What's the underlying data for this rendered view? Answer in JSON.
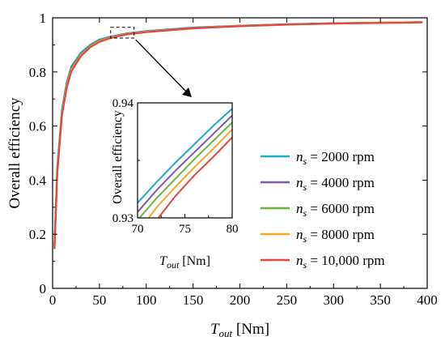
{
  "chart_data": [
    {
      "type": "line",
      "xlabel": {
        "main": "T",
        "sub": "out",
        "unit": " [Nm]"
      },
      "ylabel": "Overall efficiency",
      "xlim": [
        0,
        400
      ],
      "ylim": [
        0,
        1
      ],
      "x_ticks": [
        0,
        50,
        100,
        150,
        200,
        250,
        300,
        350,
        400
      ],
      "y_ticks": [
        0,
        0.2,
        0.4,
        0.6,
        0.8,
        1
      ],
      "y_tick_labels": [
        "0",
        "0.2",
        "0.4",
        "0.6",
        "0.8",
        "1"
      ],
      "grid": false,
      "legend_position": "right",
      "series": [
        {
          "name": "2000 rpm",
          "color": "#1fa9c9",
          "x": [
            2,
            5,
            10,
            15,
            20,
            30,
            40,
            50,
            60,
            70,
            80,
            100,
            150,
            200,
            250,
            300,
            350,
            395
          ],
          "y": [
            0.16,
            0.45,
            0.66,
            0.76,
            0.82,
            0.87,
            0.9,
            0.92,
            0.929,
            0.936,
            0.943,
            0.951,
            0.964,
            0.971,
            0.976,
            0.98,
            0.982,
            0.984
          ]
        },
        {
          "name": "4000 rpm",
          "color": "#7e57a8",
          "x": [
            2,
            5,
            10,
            15,
            20,
            30,
            40,
            50,
            60,
            70,
            80,
            100,
            150,
            200,
            250,
            300,
            350,
            395
          ],
          "y": [
            0.155,
            0.44,
            0.655,
            0.755,
            0.815,
            0.865,
            0.897,
            0.917,
            0.927,
            0.935,
            0.942,
            0.95,
            0.963,
            0.971,
            0.976,
            0.98,
            0.982,
            0.984
          ]
        },
        {
          "name": "6000 rpm",
          "color": "#6db33f",
          "x": [
            2,
            5,
            10,
            15,
            20,
            30,
            40,
            50,
            60,
            70,
            80,
            100,
            150,
            200,
            250,
            300,
            350,
            395
          ],
          "y": [
            0.15,
            0.435,
            0.65,
            0.75,
            0.81,
            0.862,
            0.895,
            0.915,
            0.926,
            0.934,
            0.941,
            0.949,
            0.962,
            0.97,
            0.975,
            0.979,
            0.982,
            0.984
          ]
        },
        {
          "name": "8000 rpm",
          "color": "#f5a623",
          "x": [
            2,
            5,
            10,
            15,
            20,
            30,
            40,
            50,
            60,
            70,
            80,
            100,
            150,
            200,
            250,
            300,
            350,
            395
          ],
          "y": [
            0.148,
            0.43,
            0.645,
            0.745,
            0.806,
            0.86,
            0.893,
            0.913,
            0.925,
            0.933,
            0.94,
            0.948,
            0.961,
            0.97,
            0.975,
            0.979,
            0.982,
            0.984
          ]
        },
        {
          "name": "10,000 rpm",
          "color": "#e0473f",
          "x": [
            2,
            5,
            10,
            15,
            20,
            30,
            40,
            50,
            60,
            70,
            80,
            100,
            150,
            200,
            250,
            300,
            350,
            395
          ],
          "y": [
            0.145,
            0.425,
            0.64,
            0.74,
            0.802,
            0.857,
            0.891,
            0.911,
            0.923,
            0.932,
            0.939,
            0.947,
            0.961,
            0.969,
            0.975,
            0.979,
            0.981,
            0.983
          ]
        }
      ],
      "legend_prefix": {
        "main": "n",
        "sub": "s",
        "sep": " = "
      },
      "zoom_box": {
        "x": [
          62,
          87
        ],
        "y": [
          0.925,
          0.965
        ]
      }
    },
    {
      "type": "line",
      "inset": true,
      "xlabel": {
        "main": "T",
        "sub": "out",
        "unit": " [Nm]"
      },
      "ylabel": "Overall efficiency",
      "xlim": [
        70,
        80
      ],
      "ylim": [
        0.93,
        0.94
      ],
      "x_ticks": [
        70,
        75,
        80
      ],
      "y_ticks": [
        0.93,
        0.94
      ],
      "y_tick_labels": [
        "0.93",
        "0.94"
      ],
      "series": [
        {
          "name": "2000 rpm",
          "color": "#1fa9c9",
          "x": [
            70,
            72,
            74,
            76,
            78,
            80
          ],
          "y": [
            0.9313,
            0.9331,
            0.9348,
            0.9364,
            0.938,
            0.9395
          ]
        },
        {
          "name": "4000 rpm",
          "color": "#7e57a8",
          "x": [
            70,
            72,
            74,
            76,
            78,
            80
          ],
          "y": [
            0.9305,
            0.9324,
            0.9341,
            0.9357,
            0.9373,
            0.9389
          ]
        },
        {
          "name": "6000 rpm",
          "color": "#6db33f",
          "x": [
            70.2,
            72,
            74,
            76,
            78,
            80
          ],
          "y": [
            0.93,
            0.9317,
            0.9334,
            0.9351,
            0.9367,
            0.9383
          ]
        },
        {
          "name": "8000 rpm",
          "color": "#f5a623",
          "x": [
            71.2,
            72,
            74,
            76,
            78,
            80
          ],
          "y": [
            0.93,
            0.9309,
            0.9327,
            0.9344,
            0.936,
            0.9377
          ]
        },
        {
          "name": "10,000 rpm",
          "color": "#e0473f",
          "x": [
            72.2,
            74,
            76,
            78,
            80
          ],
          "y": [
            0.93,
            0.9319,
            0.9337,
            0.9353,
            0.937
          ]
        }
      ]
    }
  ]
}
